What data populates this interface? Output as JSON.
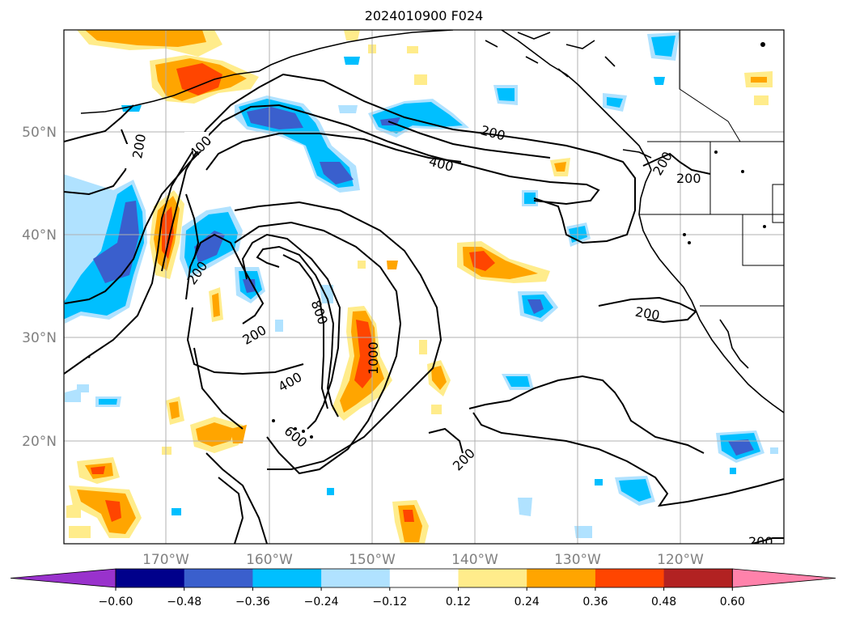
{
  "title": "2024010900 F024",
  "lat_labels": [
    "50°N",
    "40°N",
    "30°N",
    "20°N"
  ],
  "lon_labels": [
    "170°W",
    "160°W",
    "150°W",
    "140°W",
    "130°W",
    "120°W"
  ],
  "colorbar": {
    "colors": [
      "#9932cc",
      "#00008b",
      "#3a5fcd",
      "#00bfff",
      "#b0e2ff",
      "#ffffff",
      "#ffec8b",
      "#ffa500",
      "#ff4500",
      "#b22222",
      "#ff82ab"
    ],
    "tick_labels": [
      "−0.60",
      "−0.48",
      "−0.36",
      "−0.24",
      "−0.12",
      "0.12",
      "0.24",
      "0.36",
      "0.48",
      "0.60"
    ]
  },
  "contour_labels": {
    "c1": "200",
    "c2": "400",
    "c3": "200",
    "c4": "400",
    "c5": "200",
    "c6": "200",
    "c7": "200",
    "c8": "200",
    "c9": "800",
    "c10": "1000",
    "c11": "400",
    "c12": "600",
    "c13": "200",
    "c14": "200",
    "c15": "200"
  }
}
